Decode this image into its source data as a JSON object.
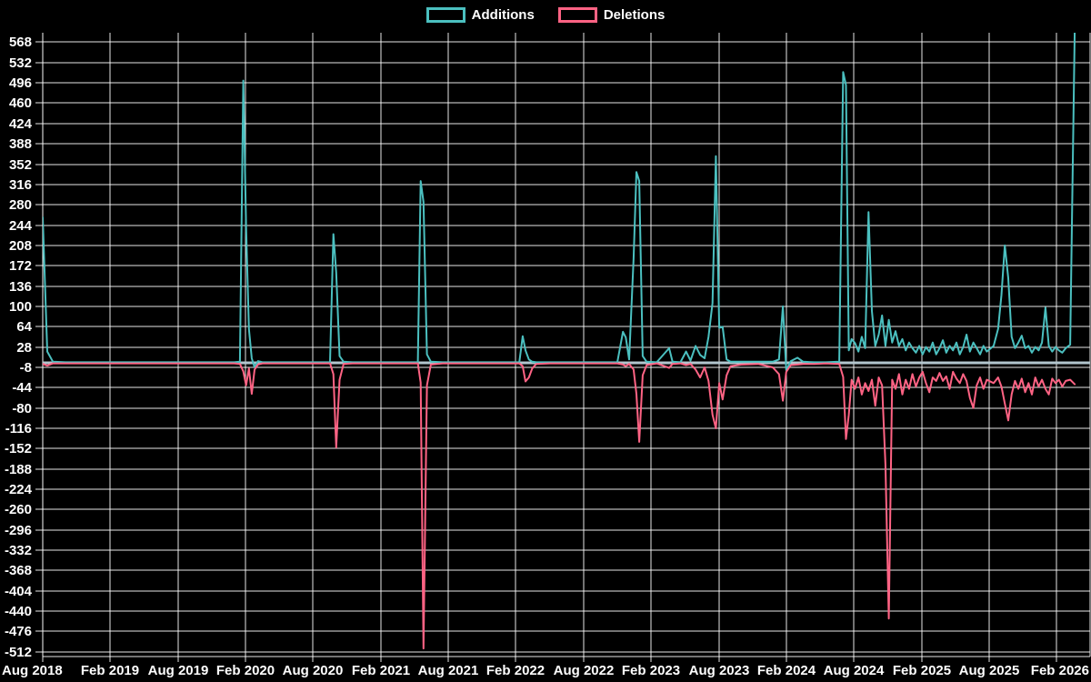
{
  "legend": {
    "items": [
      {
        "label": "Additions",
        "color": "#4bc0c0"
      },
      {
        "label": "Deletions",
        "color": "#ff6384"
      }
    ]
  },
  "chart_data": {
    "type": "line",
    "title": "",
    "legend_position": "top",
    "grid": true,
    "background": "#000000",
    "grid_color": "rgba(255,255,255,0.9)",
    "axis_text_color": "#ffffff",
    "zero_line_color": "#b3c6ce",
    "x_unit": "months since Aug 2018",
    "x_tick_labels": [
      "Aug 2018",
      "Feb 2019",
      "Aug 2019",
      "Feb 2020",
      "Aug 2020",
      "Feb 2021",
      "Aug 2021",
      "Feb 2022",
      "Aug 2022",
      "Feb 2023",
      "Aug 2023",
      "Feb 2024",
      "Aug 2024",
      "Feb 2025",
      "Aug 2025",
      "Feb 2026"
    ],
    "y_tick_values": [
      568,
      532,
      496,
      460,
      424,
      388,
      352,
      316,
      280,
      244,
      208,
      172,
      136,
      100,
      64,
      28,
      -8,
      -44,
      -80,
      -116,
      -152,
      -188,
      -224,
      -260,
      -296,
      -332,
      -368,
      -404,
      -440,
      -476,
      -512
    ],
    "y_axis_range": [
      -520,
      585
    ],
    "series_meta": [
      {
        "name": "Additions",
        "color": "#4bc0c0"
      },
      {
        "name": "Deletions",
        "color": "#ff6384"
      }
    ],
    "points_format": [
      "months_since_aug_2018",
      "additions",
      "deletions"
    ],
    "points": [
      [
        0,
        258,
        -2
      ],
      [
        0.4,
        20,
        -5
      ],
      [
        0.9,
        2,
        -1
      ],
      [
        2,
        1,
        -1
      ],
      [
        5,
        1,
        -1
      ],
      [
        8,
        1,
        -1
      ],
      [
        11,
        1,
        -1
      ],
      [
        14,
        1,
        -1
      ],
      [
        17,
        1,
        -1
      ],
      [
        17.5,
        2,
        -2
      ],
      [
        17.8,
        500,
        -15
      ],
      [
        18.05,
        240,
        -40
      ],
      [
        18.3,
        60,
        -10
      ],
      [
        18.55,
        8,
        -55
      ],
      [
        18.8,
        -8,
        -12
      ],
      [
        19.1,
        3,
        -3
      ],
      [
        19.5,
        1,
        -1
      ],
      [
        21,
        1,
        -1
      ],
      [
        23,
        1,
        -1
      ],
      [
        25,
        1,
        -1
      ],
      [
        25.5,
        1,
        -1
      ],
      [
        25.8,
        228,
        -20
      ],
      [
        26.05,
        160,
        -150
      ],
      [
        26.35,
        12,
        -30
      ],
      [
        26.7,
        2,
        -2
      ],
      [
        27.5,
        1,
        -1
      ],
      [
        29,
        1,
        -1
      ],
      [
        31,
        1,
        -1
      ],
      [
        33,
        1,
        -1
      ],
      [
        33.3,
        1,
        -1
      ],
      [
        33.55,
        322,
        -35
      ],
      [
        33.8,
        285,
        -506
      ],
      [
        34.1,
        15,
        -40
      ],
      [
        34.45,
        2,
        -3
      ],
      [
        35.5,
        1,
        -1
      ],
      [
        37,
        1,
        -1
      ],
      [
        39,
        1,
        -1
      ],
      [
        41,
        1,
        -1
      ],
      [
        42.3,
        1,
        -1
      ],
      [
        42.6,
        47,
        -6
      ],
      [
        42.85,
        22,
        -33
      ],
      [
        43.15,
        6,
        -26
      ],
      [
        43.45,
        2,
        -10
      ],
      [
        43.8,
        1,
        -2
      ],
      [
        45,
        1,
        -1
      ],
      [
        47,
        1,
        -1
      ],
      [
        49,
        1,
        -1
      ],
      [
        51,
        1,
        -1
      ],
      [
        51.5,
        55,
        -3
      ],
      [
        51.75,
        45,
        -6
      ],
      [
        52.05,
        6,
        -2
      ],
      [
        52.45,
        185,
        -12
      ],
      [
        52.7,
        338,
        -55
      ],
      [
        52.95,
        322,
        -140
      ],
      [
        53.25,
        12,
        -22
      ],
      [
        53.6,
        2,
        -4
      ],
      [
        54.5,
        1,
        -1
      ],
      [
        55.6,
        26,
        -9
      ],
      [
        55.9,
        2,
        -2
      ],
      [
        56.6,
        1,
        -1
      ],
      [
        57.1,
        20,
        -4
      ],
      [
        57.5,
        4,
        -2
      ],
      [
        57.95,
        30,
        -12
      ],
      [
        58.35,
        14,
        -26
      ],
      [
        58.75,
        8,
        -8
      ],
      [
        59.1,
        46,
        -32
      ],
      [
        59.45,
        106,
        -92
      ],
      [
        59.75,
        366,
        -116
      ],
      [
        60.05,
        62,
        -36
      ],
      [
        60.35,
        64,
        -65
      ],
      [
        60.7,
        6,
        -22
      ],
      [
        61.05,
        2,
        -6
      ],
      [
        62,
        2,
        -3
      ],
      [
        63.5,
        2,
        -2
      ],
      [
        64.8,
        2,
        -8
      ],
      [
        65.35,
        6,
        -20
      ],
      [
        65.7,
        100,
        -67
      ],
      [
        66.0,
        -13,
        -16
      ],
      [
        66.4,
        3,
        -4
      ],
      [
        67.0,
        9,
        -3
      ],
      [
        67.5,
        2,
        -2
      ],
      [
        68.5,
        1,
        -2
      ],
      [
        69.5,
        1,
        -1
      ],
      [
        70.7,
        2,
        -2
      ],
      [
        71.05,
        515,
        -25
      ],
      [
        71.3,
        492,
        -135
      ],
      [
        71.55,
        22,
        -92
      ],
      [
        71.8,
        42,
        -30
      ],
      [
        72.1,
        35,
        -46
      ],
      [
        72.4,
        20,
        -26
      ],
      [
        72.7,
        46,
        -56
      ],
      [
        73.0,
        26,
        -36
      ],
      [
        73.3,
        267,
        -50
      ],
      [
        73.6,
        92,
        -30
      ],
      [
        73.9,
        30,
        -76
      ],
      [
        74.2,
        50,
        -26
      ],
      [
        74.5,
        84,
        -40
      ],
      [
        74.8,
        30,
        -180
      ],
      [
        75.1,
        76,
        -453
      ],
      [
        75.4,
        36,
        -30
      ],
      [
        75.7,
        56,
        -46
      ],
      [
        76.0,
        30,
        -20
      ],
      [
        76.3,
        42,
        -56
      ],
      [
        76.6,
        22,
        -30
      ],
      [
        76.9,
        36,
        -46
      ],
      [
        77.2,
        26,
        -20
      ],
      [
        77.5,
        18,
        -42
      ],
      [
        77.8,
        30,
        -26
      ],
      [
        78.1,
        15,
        -16
      ],
      [
        78.4,
        28,
        -36
      ],
      [
        78.7,
        20,
        -52
      ],
      [
        79.0,
        36,
        -26
      ],
      [
        79.3,
        15,
        -32
      ],
      [
        79.6,
        26,
        -18
      ],
      [
        79.9,
        40,
        -32
      ],
      [
        80.2,
        18,
        -24
      ],
      [
        80.5,
        30,
        -46
      ],
      [
        80.8,
        22,
        -16
      ],
      [
        81.1,
        36,
        -28
      ],
      [
        81.4,
        15,
        -36
      ],
      [
        81.7,
        28,
        -20
      ],
      [
        82.0,
        50,
        -32
      ],
      [
        82.3,
        20,
        -62
      ],
      [
        82.6,
        36,
        -80
      ],
      [
        82.9,
        26,
        -40
      ],
      [
        83.2,
        15,
        -26
      ],
      [
        83.5,
        30,
        -46
      ],
      [
        83.8,
        20,
        -30
      ],
      [
        84.4,
        30,
        -36
      ],
      [
        84.8,
        60,
        -26
      ],
      [
        85.1,
        120,
        -42
      ],
      [
        85.4,
        208,
        -72
      ],
      [
        85.7,
        150,
        -102
      ],
      [
        86.0,
        46,
        -56
      ],
      [
        86.3,
        26,
        -32
      ],
      [
        86.6,
        36,
        -46
      ],
      [
        86.9,
        48,
        -28
      ],
      [
        87.2,
        26,
        -52
      ],
      [
        87.5,
        30,
        -36
      ],
      [
        87.8,
        18,
        -56
      ],
      [
        88.1,
        28,
        -26
      ],
      [
        88.4,
        22,
        -42
      ],
      [
        88.7,
        36,
        -30
      ],
      [
        89.0,
        98,
        -46
      ],
      [
        89.3,
        30,
        -56
      ],
      [
        89.6,
        20,
        -28
      ],
      [
        89.9,
        28,
        -36
      ],
      [
        90.2,
        22,
        -30
      ],
      [
        90.5,
        18,
        -42
      ],
      [
        90.8,
        26,
        -32
      ],
      [
        91.2,
        32,
        -30
      ],
      [
        91.6,
        590,
        -38
      ]
    ]
  }
}
